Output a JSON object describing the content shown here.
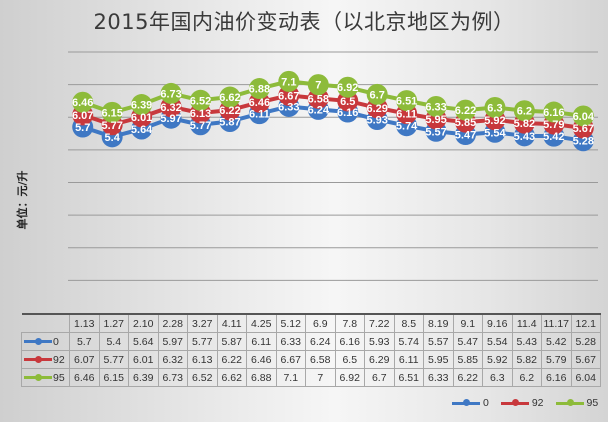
{
  "chart_data": {
    "type": "line",
    "title": "2015年国内油价变动表（以北京地区为例）",
    "xlabel": "",
    "ylabel": "单位：元/升",
    "ylim": [
      0,
      8
    ],
    "grid": true,
    "legend_position": "bottom-right",
    "data_table": true,
    "categories": [
      "1.13",
      "1.27",
      "2.10",
      "2.28",
      "3.27",
      "4.11",
      "4.25",
      "5.12",
      "6.9",
      "7.8",
      "7.22",
      "8.5",
      "8.19",
      "9.1",
      "9.16",
      "11.4",
      "11.17",
      "12.1"
    ],
    "series": [
      {
        "name": "0",
        "color": "#3f78c4",
        "values": [
          5.7,
          5.4,
          5.64,
          5.97,
          5.77,
          5.87,
          6.11,
          6.33,
          6.24,
          6.16,
          5.93,
          5.74,
          5.57,
          5.47,
          5.54,
          5.43,
          5.42,
          5.28
        ]
      },
      {
        "name": "92",
        "color": "#c8383c",
        "values": [
          6.07,
          5.77,
          6.01,
          6.32,
          6.13,
          6.22,
          6.46,
          6.67,
          6.58,
          6.5,
          6.29,
          6.11,
          5.95,
          5.85,
          5.92,
          5.82,
          5.79,
          5.67
        ]
      },
      {
        "name": "95",
        "color": "#8dbb3a",
        "values": [
          6.46,
          6.15,
          6.39,
          6.73,
          6.52,
          6.62,
          6.88,
          7.1,
          7,
          6.92,
          6.7,
          6.51,
          6.33,
          6.22,
          6.3,
          6.2,
          6.16,
          6.04
        ]
      }
    ],
    "value_labels": [
      "5.7",
      "5.4",
      "5.64",
      "5.97",
      "5.77",
      "5.87",
      "6.11",
      "6.33",
      "6.24",
      "6.16",
      "5.93",
      "5.74",
      "5.57",
      "5.47",
      "5.54",
      "5.43",
      "5.42",
      "5.28"
    ]
  },
  "labels": {
    "series_0": [
      "5.7",
      "5.4",
      "5.64",
      "5.97",
      "5.77",
      "5.87",
      "6.11",
      "6.33",
      "6.24",
      "6.16",
      "5.93",
      "5.74",
      "5.57",
      "5.47",
      "5.54",
      "5.43",
      "5.42",
      "5.28"
    ],
    "series_92": [
      "6.07",
      "5.77",
      "6.01",
      "6.32",
      "6.13",
      "6.22",
      "6.46",
      "6.67",
      "6.58",
      "6.5",
      "6.29",
      "6.11",
      "5.95",
      "5.85",
      "5.92",
      "5.82",
      "5.79",
      "5.67"
    ],
    "series_95": [
      "6.46",
      "6.15",
      "6.39",
      "6.73",
      "6.52",
      "6.62",
      "6.88",
      "7.1",
      "7",
      "6.92",
      "6.7",
      "6.51",
      "6.33",
      "6.22",
      "6.3",
      "6.2",
      "6.16",
      "6.04"
    ]
  },
  "legend": [
    {
      "label": "0",
      "color": "#3f78c4"
    },
    {
      "label": "92",
      "color": "#c8383c"
    },
    {
      "label": "95",
      "color": "#8dbb3a"
    }
  ]
}
